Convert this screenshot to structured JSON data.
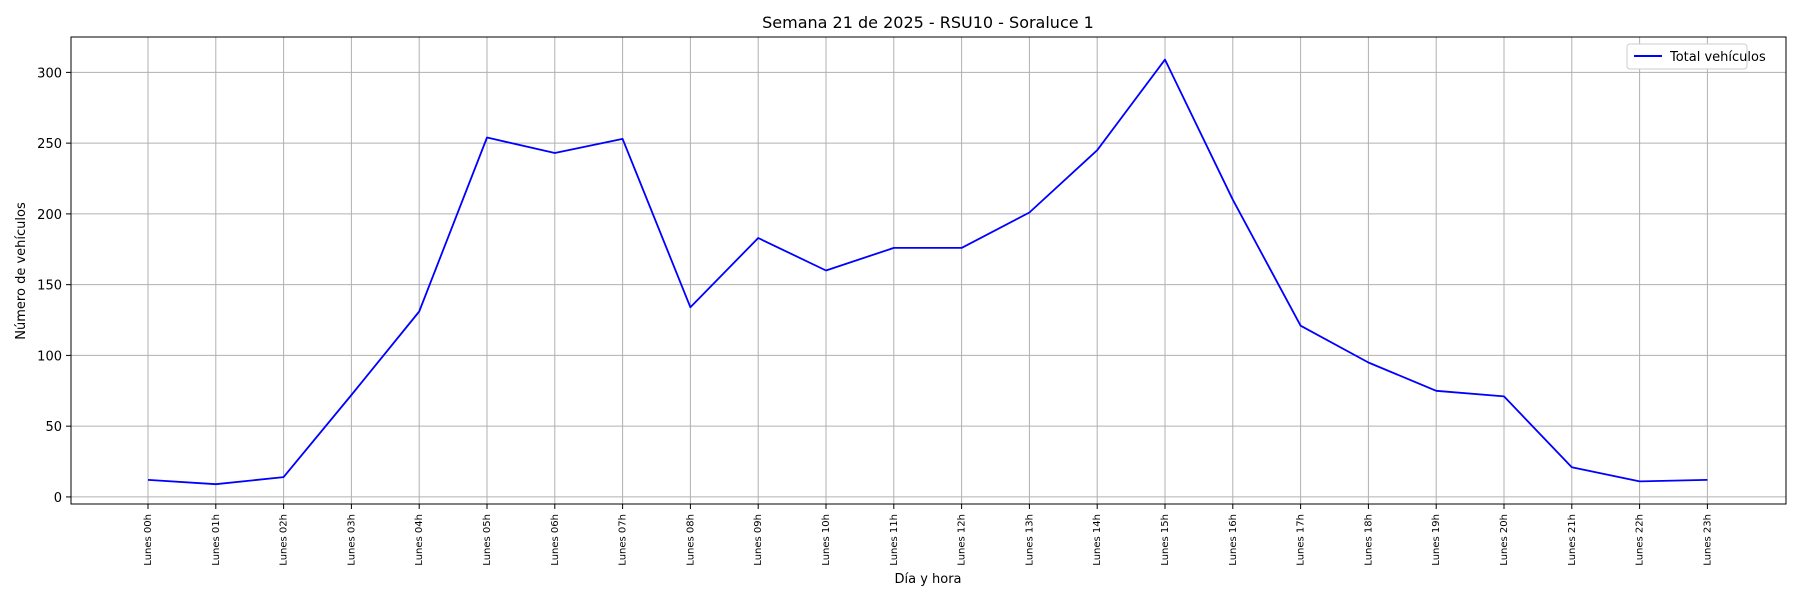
{
  "chart_data": {
    "type": "line",
    "title": "Semana 21 de 2025 - RSU10 - Soraluce 1",
    "xlabel": "Día y hora",
    "ylabel": "Número de vehículos",
    "ylim": [
      -5,
      325
    ],
    "yticks": [
      0,
      50,
      100,
      150,
      200,
      250,
      300
    ],
    "grid": true,
    "legend_position": "top-right",
    "categories": [
      "Lunes 00h",
      "Lunes 01h",
      "Lunes 02h",
      "Lunes 03h",
      "Lunes 04h",
      "Lunes 05h",
      "Lunes 06h",
      "Lunes 07h",
      "Lunes 08h",
      "Lunes 09h",
      "Lunes 10h",
      "Lunes 11h",
      "Lunes 12h",
      "Lunes 13h",
      "Lunes 14h",
      "Lunes 15h",
      "Lunes 16h",
      "Lunes 17h",
      "Lunes 18h",
      "Lunes 19h",
      "Lunes 20h",
      "Lunes 21h",
      "Lunes 22h",
      "Lunes 23h"
    ],
    "series": [
      {
        "name": "Total vehículos",
        "color": "#0000ff",
        "values": [
          12,
          9,
          14,
          72,
          131,
          254,
          243,
          253,
          134,
          183,
          160,
          176,
          176,
          201,
          245,
          309,
          210,
          121,
          95,
          75,
          71,
          21,
          11,
          12
        ]
      }
    ]
  }
}
